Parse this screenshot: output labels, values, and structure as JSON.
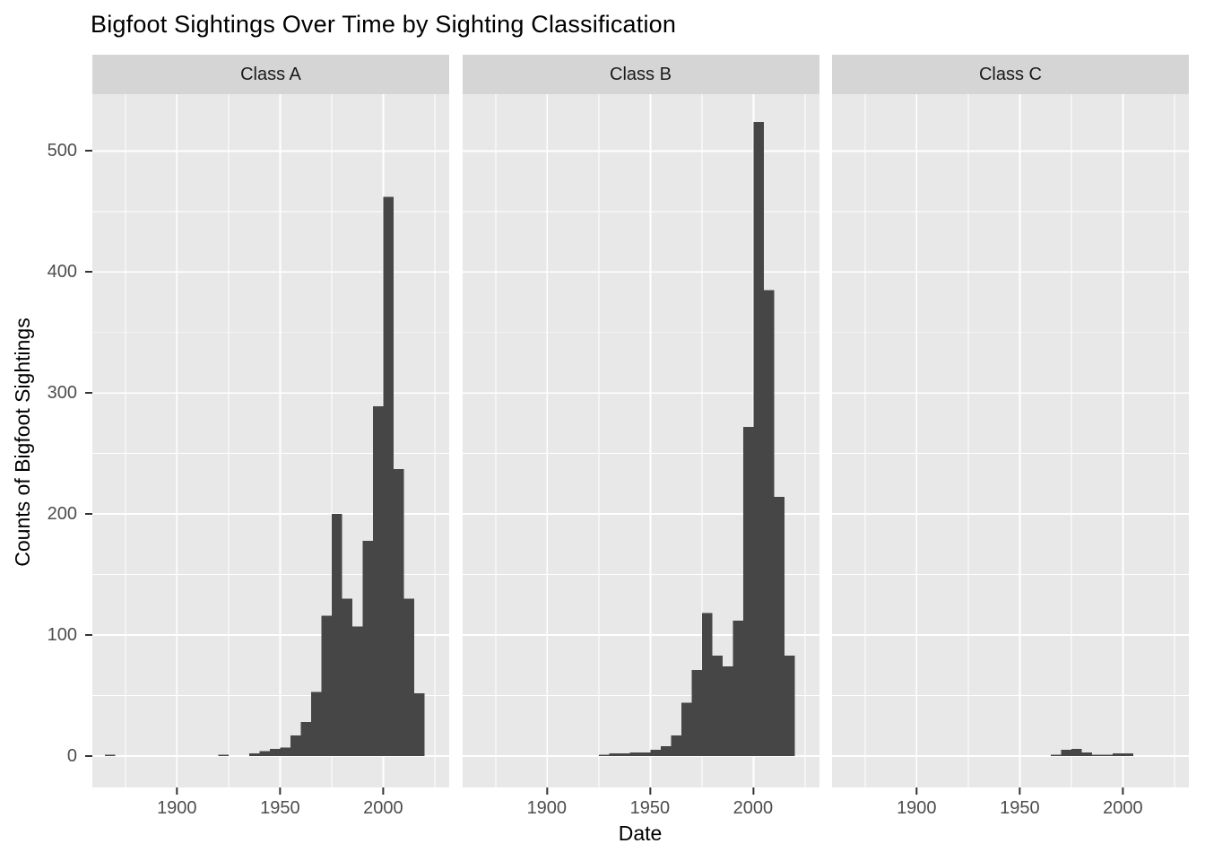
{
  "chart_data": {
    "type": "bar",
    "subtype": "faceted-histogram",
    "title": "Bigfoot Sightings Over Time by Sighting Classification",
    "xlabel": "Date",
    "ylabel": "Counts of Bigfoot Sightings",
    "facets": [
      "Class A",
      "Class B",
      "Class C"
    ],
    "bin_width_years": 5,
    "x_domain": [
      1859,
      2032
    ],
    "y_domain": [
      -26,
      547
    ],
    "x_ticks": [
      1900,
      1950,
      2000
    ],
    "x_minor_gridlines": [
      1875,
      1925,
      1975,
      2025
    ],
    "y_ticks": [
      0,
      100,
      200,
      300,
      400,
      500
    ],
    "y_minor_gridlines": [
      50,
      150,
      250,
      350,
      450
    ],
    "grid": "on",
    "legend": "none",
    "series": [
      {
        "name": "Class A",
        "bins": [
          [
            1865,
            1
          ],
          [
            1920,
            1
          ],
          [
            1935,
            2
          ],
          [
            1940,
            4
          ],
          [
            1945,
            6
          ],
          [
            1950,
            7
          ],
          [
            1955,
            17
          ],
          [
            1960,
            28
          ],
          [
            1965,
            53
          ],
          [
            1970,
            116
          ],
          [
            1975,
            200
          ],
          [
            1980,
            130
          ],
          [
            1985,
            107
          ],
          [
            1990,
            178
          ],
          [
            1995,
            289
          ],
          [
            2000,
            462
          ],
          [
            2005,
            237
          ],
          [
            2010,
            130
          ],
          [
            2015,
            52
          ]
        ]
      },
      {
        "name": "Class B",
        "bins": [
          [
            1925,
            1
          ],
          [
            1930,
            2
          ],
          [
            1935,
            2
          ],
          [
            1940,
            3
          ],
          [
            1945,
            3
          ],
          [
            1950,
            5
          ],
          [
            1955,
            8
          ],
          [
            1960,
            17
          ],
          [
            1965,
            44
          ],
          [
            1970,
            71
          ],
          [
            1975,
            118
          ],
          [
            1980,
            83
          ],
          [
            1985,
            74
          ],
          [
            1990,
            112
          ],
          [
            1995,
            272
          ],
          [
            2000,
            524
          ],
          [
            2005,
            385
          ],
          [
            2010,
            214
          ],
          [
            2015,
            83
          ]
        ]
      },
      {
        "name": "Class C",
        "bins": [
          [
            1965,
            1
          ],
          [
            1970,
            5
          ],
          [
            1975,
            6
          ],
          [
            1980,
            3
          ],
          [
            1985,
            1
          ],
          [
            1990,
            1
          ],
          [
            1995,
            2
          ],
          [
            2000,
            2
          ]
        ]
      }
    ],
    "colors": {
      "bar": "#464646",
      "panel_bg": "#E8E8E8",
      "strip_bg": "#D5D5D5",
      "gridline": "#FFFFFF",
      "axis_text": "#4D4D4D",
      "tick_mark": "#333333",
      "title_text": "#000000"
    }
  }
}
